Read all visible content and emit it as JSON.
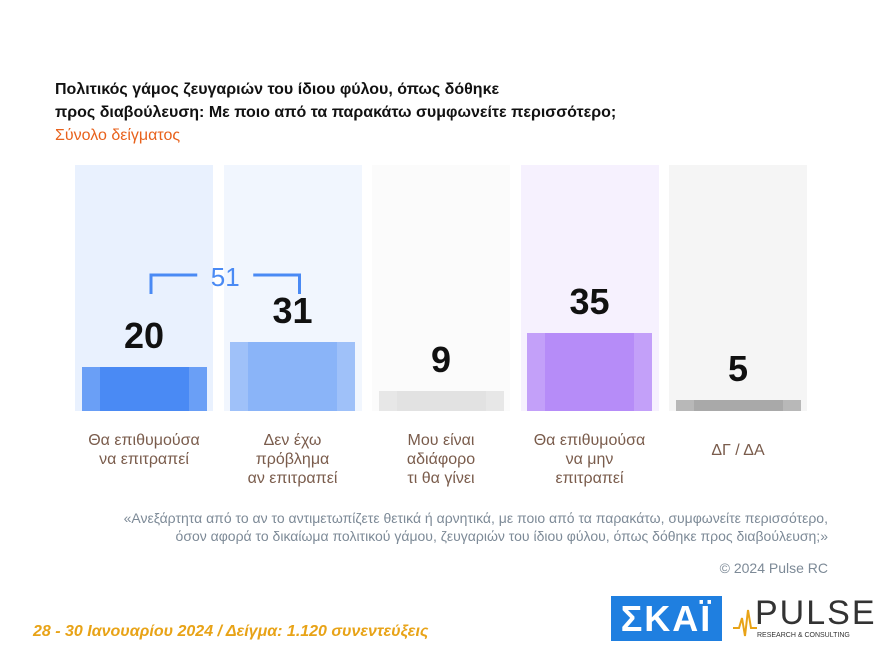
{
  "chart_data": {
    "type": "bar",
    "title": "Πολιτικός γάμος ζευγαριών του ίδιου φύλου, όπως δόθηκε\nπρος διαβούλευση: Με ποιο από τα παρακάτω συμφωνείτε περισσότερο;",
    "subtitle": "Σύνολο δείγματος",
    "categories": [
      "Θα επιθυμούσα\nνα επιτραπεί",
      "Δεν έχω\nπρόβλημα\nαν επιτραπεί",
      "Μου είναι\nαδιάφορο\nτι θα γίνει",
      "Θα επιθυμούσα\nνα μην\nεπιτραπεί",
      "ΔΓ / ΔΑ"
    ],
    "values": [
      20,
      31,
      9,
      35,
      5
    ],
    "colors": [
      "#4a8af4",
      "#8ab4f8",
      "#e2e2e2",
      "#b68cf8",
      "#a9a9a9"
    ],
    "bracket_total": 51,
    "note": "«Ανεξάρτητα από το αν το αντιμετωπίζετε θετικά ή αρνητικά, με ποιο από τα παρακάτω, συμφωνείτε περισσότερο,\nόσον αφορά το δικαίωμα πολιτικού γάμου, ζευγαριών του ίδιου φύλου, όπως δόθηκε προς διαβούλευση;»",
    "copyright": "© 2024 Pulse RC",
    "footer": "28 - 30  Ιανουαρίου  2024  /  Δείγμα:  1.120 συνεντεύξεις",
    "logo_left": "ΣΚΑΪ",
    "logo_right": "PULSE",
    "logo_right_sub": "RESEARCH & CONSULTING"
  }
}
